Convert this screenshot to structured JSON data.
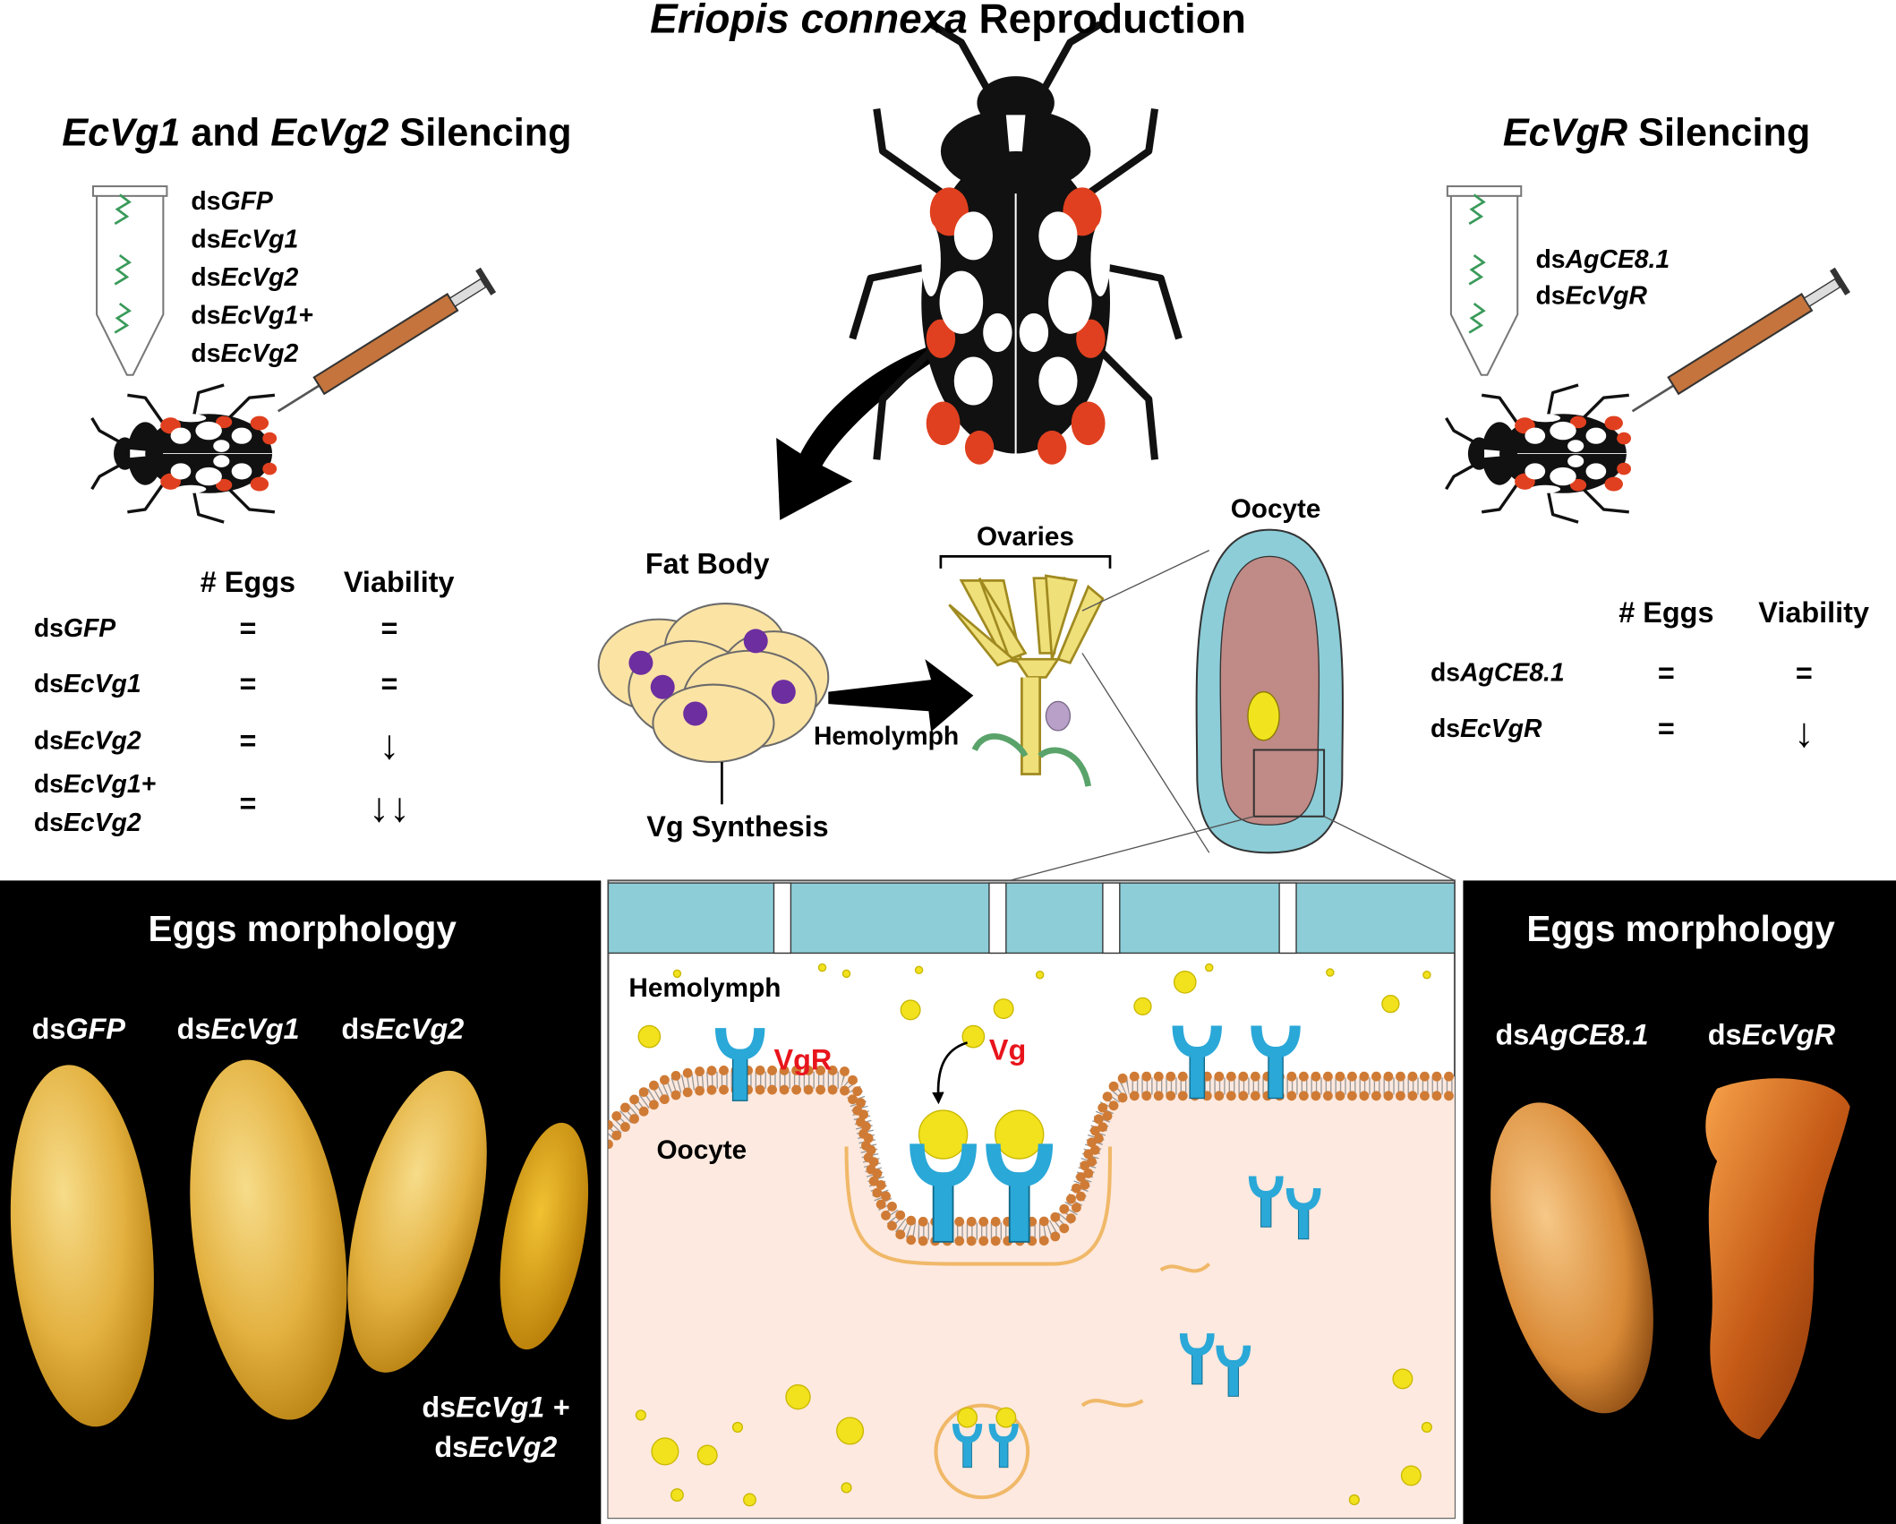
{
  "title": [
    "Eriopis connexa",
    " Reproduction"
  ],
  "left_panel": {
    "heading": [
      "EcVg1",
      " and ",
      "EcVg2",
      " Silencing"
    ],
    "treatments": [
      [
        "ds",
        "GFP"
      ],
      [
        "ds",
        "EcVg1"
      ],
      [
        "ds",
        "EcVg2"
      ],
      [
        "ds",
        "EcVg1+"
      ],
      [
        "ds",
        "EcVg2"
      ]
    ],
    "table": {
      "columns": [
        "# Eggs",
        "Viability"
      ],
      "rows": [
        {
          "label": [
            [
              "ds",
              "GFP"
            ]
          ],
          "eggs": "=",
          "viability": "="
        },
        {
          "label": [
            [
              "ds",
              "EcVg1"
            ]
          ],
          "eggs": "=",
          "viability": "="
        },
        {
          "label": [
            [
              "ds",
              "EcVg2"
            ]
          ],
          "eggs": "=",
          "viability": "↓"
        },
        {
          "label": [
            [
              "ds",
              "EcVg1+"
            ],
            [
              "ds",
              "EcVg2"
            ]
          ],
          "eggs": "=",
          "viability": "↓↓"
        }
      ]
    }
  },
  "right_panel": {
    "heading": [
      "EcVgR",
      " Silencing"
    ],
    "treatments": [
      [
        "ds",
        "AgCE8.1"
      ],
      [
        "ds",
        "EcVgR"
      ]
    ],
    "table": {
      "columns": [
        "# Eggs",
        "Viability"
      ],
      "rows": [
        {
          "label": [
            [
              "ds",
              "AgCE8.1"
            ]
          ],
          "eggs": "=",
          "viability": "="
        },
        {
          "label": [
            [
              "ds",
              "EcVgR"
            ]
          ],
          "eggs": "=",
          "viability": "↓"
        }
      ]
    }
  },
  "center": {
    "fat_body": "Fat Body",
    "transport": "Hemolymph",
    "synthesis": "Vg Synthesis",
    "ovaries": "Ovaries",
    "oocyte": "Oocyte",
    "detail": {
      "hemolymph": "Hemolymph",
      "receptor": "VgR",
      "ligand": "Vg",
      "oocyte": "Oocyte"
    }
  },
  "left_morphology": {
    "title": "Eggs morphology",
    "labels": [
      [
        [
          "ds",
          "GFP"
        ]
      ],
      [
        [
          "ds",
          "EcVg1"
        ]
      ],
      [
        [
          "ds",
          "EcVg2"
        ]
      ],
      [
        [
          "ds",
          "EcVg1 +"
        ],
        [
          "ds",
          "EcVg2"
        ]
      ]
    ]
  },
  "right_morphology": {
    "title": "Eggs morphology",
    "labels": [
      [
        [
          "ds",
          "AgCE8.1"
        ]
      ],
      [
        [
          "ds",
          "EcVgR"
        ]
      ]
    ]
  }
}
